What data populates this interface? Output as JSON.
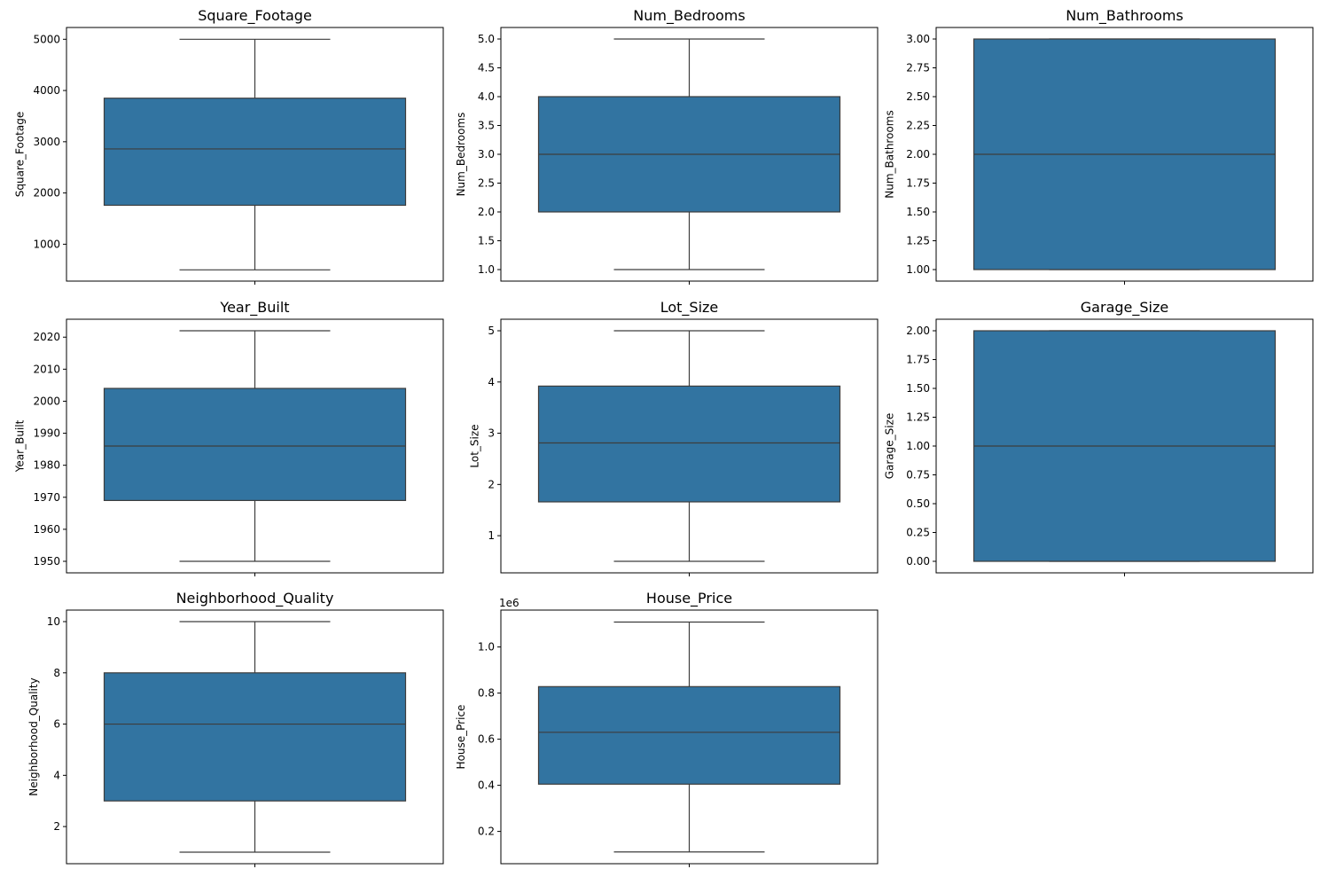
{
  "figure": {
    "background": "#ffffff",
    "box_color": "#3274a1",
    "line_color": "#3d3d3d"
  },
  "chart_data": [
    {
      "type": "box",
      "title": "Square_Footage",
      "ylabel": "Square_Footage",
      "ylim": [
        280,
        5230
      ],
      "yticks": [
        1000,
        2000,
        3000,
        4000,
        5000
      ],
      "tick_labels": [
        "1000",
        "2000",
        "3000",
        "4000",
        "5000"
      ],
      "stats": {
        "min": 500,
        "q1": 1760,
        "median": 2860,
        "q3": 3850,
        "max": 5000
      },
      "offset_label": ""
    },
    {
      "type": "box",
      "title": "Num_Bedrooms",
      "ylabel": "Num_Bedrooms",
      "ylim": [
        0.8,
        5.2
      ],
      "yticks": [
        1.0,
        1.5,
        2.0,
        2.5,
        3.0,
        3.5,
        4.0,
        4.5,
        5.0
      ],
      "tick_labels": [
        "1.0",
        "1.5",
        "2.0",
        "2.5",
        "3.0",
        "3.5",
        "4.0",
        "4.5",
        "5.0"
      ],
      "stats": {
        "min": 1.0,
        "q1": 2.0,
        "median": 3.0,
        "q3": 4.0,
        "max": 5.0
      },
      "offset_label": ""
    },
    {
      "type": "box",
      "title": "Num_Bathrooms",
      "ylabel": "Num_Bathrooms",
      "ylim": [
        0.9,
        3.1
      ],
      "yticks": [
        1.0,
        1.25,
        1.5,
        1.75,
        2.0,
        2.25,
        2.5,
        2.75,
        3.0
      ],
      "tick_labels": [
        "1.00",
        "1.25",
        "1.50",
        "1.75",
        "2.00",
        "2.25",
        "2.50",
        "2.75",
        "3.00"
      ],
      "stats": {
        "min": 1.0,
        "q1": 1.0,
        "median": 2.0,
        "q3": 3.0,
        "max": 3.0
      },
      "offset_label": ""
    },
    {
      "type": "box",
      "title": "Year_Built",
      "ylabel": "Year_Built",
      "ylim": [
        1946.4,
        2025.6
      ],
      "yticks": [
        1950,
        1960,
        1970,
        1980,
        1990,
        2000,
        2010,
        2020
      ],
      "tick_labels": [
        "1950",
        "1960",
        "1970",
        "1980",
        "1990",
        "2000",
        "2010",
        "2020"
      ],
      "stats": {
        "min": 1950,
        "q1": 1969,
        "median": 1986,
        "q3": 2004,
        "max": 2022
      },
      "offset_label": ""
    },
    {
      "type": "box",
      "title": "Lot_Size",
      "ylabel": "Lot_Size",
      "ylim": [
        0.275,
        5.225
      ],
      "yticks": [
        1,
        2,
        3,
        4,
        5
      ],
      "tick_labels": [
        "1",
        "2",
        "3",
        "4",
        "5"
      ],
      "stats": {
        "min": 0.5,
        "q1": 1.66,
        "median": 2.81,
        "q3": 3.92,
        "max": 5.0
      },
      "offset_label": ""
    },
    {
      "type": "box",
      "title": "Garage_Size",
      "ylabel": "Garage_Size",
      "ylim": [
        -0.1,
        2.1
      ],
      "yticks": [
        0.0,
        0.25,
        0.5,
        0.75,
        1.0,
        1.25,
        1.5,
        1.75,
        2.0
      ],
      "tick_labels": [
        "0.00",
        "0.25",
        "0.50",
        "0.75",
        "1.00",
        "1.25",
        "1.50",
        "1.75",
        "2.00"
      ],
      "stats": {
        "min": 0.0,
        "q1": 0.0,
        "median": 1.0,
        "q3": 2.0,
        "max": 2.0
      },
      "offset_label": ""
    },
    {
      "type": "box",
      "title": "Neighborhood_Quality",
      "ylabel": "Neighborhood_Quality",
      "ylim": [
        0.55,
        10.45
      ],
      "yticks": [
        2,
        4,
        6,
        8,
        10
      ],
      "tick_labels": [
        "2",
        "4",
        "6",
        "8",
        "10"
      ],
      "stats": {
        "min": 1,
        "q1": 3,
        "median": 6,
        "q3": 8,
        "max": 10
      },
      "offset_label": ""
    },
    {
      "type": "box",
      "title": "House_Price",
      "ylabel": "House_Price",
      "ylim": [
        60000,
        1160000
      ],
      "yticks": [
        200000,
        400000,
        600000,
        800000,
        1000000
      ],
      "tick_labels": [
        "0.2",
        "0.4",
        "0.6",
        "0.8",
        "1.0"
      ],
      "stats": {
        "min": 111000,
        "q1": 405000,
        "median": 630000,
        "q3": 828000,
        "max": 1108000
      },
      "offset_label": "1e6"
    }
  ]
}
